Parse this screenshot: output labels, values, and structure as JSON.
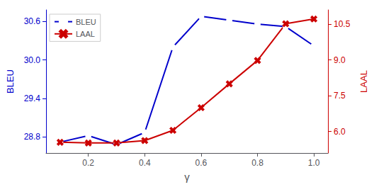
{
  "chart_data": {
    "type": "line",
    "xlabel": "γ",
    "ylabel": "BLEU",
    "y2label": "LAAL",
    "x": [
      0.1,
      0.2,
      0.3,
      0.4,
      0.5,
      0.6,
      0.7,
      0.8,
      0.9,
      1.0
    ],
    "series": [
      {
        "name": "BLEU",
        "color": "#0000cc",
        "marker": "circle",
        "axis": "y",
        "values": [
          28.72,
          28.82,
          28.68,
          28.87,
          30.2,
          30.68,
          30.62,
          30.56,
          30.52,
          30.22
        ]
      },
      {
        "name": "LAAL",
        "color": "#cc0000",
        "marker": "x",
        "axis": "y2",
        "values": [
          5.55,
          5.52,
          5.52,
          5.62,
          6.05,
          7.0,
          8.0,
          8.98,
          10.52,
          10.72
        ]
      }
    ],
    "xlim": [
      0.05,
      1.05
    ],
    "xticks": [
      0.2,
      0.4,
      0.6,
      0.8,
      {
        "value": 1.0,
        "label": "1.0"
      }
    ],
    "ylim": [
      28.55,
      30.78
    ],
    "yticks": [
      28.8,
      29.4,
      {
        "value": 30.0,
        "label": "30.0"
      },
      30.6
    ],
    "y2lim": [
      5.1,
      11.1
    ],
    "y2ticks": [
      {
        "value": 6.0,
        "label": "6.0"
      },
      7.5,
      {
        "value": 9.0,
        "label": "9.0"
      },
      10.5
    ],
    "legend": "upper left",
    "grid": false
  }
}
